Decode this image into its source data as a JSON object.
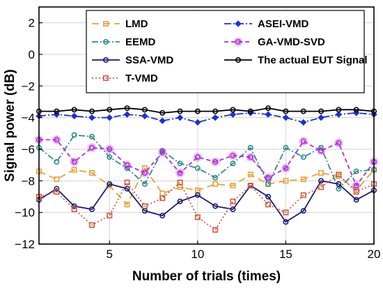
{
  "chart_data": {
    "type": "line",
    "title": "",
    "xlabel": "Number of trials (times)",
    "ylabel": "Signal power (dB)",
    "xlim": [
      1,
      20
    ],
    "ylim": [
      -12,
      3
    ],
    "xticks": [
      5,
      10,
      15,
      20
    ],
    "yticks": [
      2,
      0,
      -2,
      -4,
      -6,
      -8,
      -10,
      -12
    ],
    "ytick_labels": [
      "2",
      "0",
      "−2",
      "−4",
      "−6",
      "−8",
      "−10",
      "−12"
    ],
    "grid": true,
    "legend_position": "top",
    "x": [
      1,
      2,
      3,
      4,
      5,
      6,
      7,
      8,
      9,
      10,
      11,
      12,
      13,
      14,
      15,
      16,
      17,
      18,
      19,
      20
    ],
    "series": [
      {
        "name": "LMD",
        "color": "#E8A33A",
        "dash": "10,6",
        "marker": "square",
        "values": [
          -7.4,
          -7.9,
          -7.3,
          -7.5,
          -8.3,
          -9.5,
          -7.2,
          -8.8,
          -8.4,
          -8.6,
          -8.2,
          -8.3,
          -7.6,
          -8.2,
          -8.0,
          -7.9,
          -7.5,
          -7.7,
          -8.6,
          -7.3
        ]
      },
      {
        "name": "EEMD",
        "color": "#2E8B8B",
        "dash": "9,3,2,3",
        "marker": "circle",
        "values": [
          -5.9,
          -6.8,
          -5.1,
          -5.2,
          -6.5,
          -7.2,
          -8.2,
          -6.1,
          -6.9,
          -7.2,
          -7.8,
          -6.9,
          -5.9,
          -8.2,
          -5.9,
          -6.5,
          -5.9,
          -8.5,
          -7.4,
          -7.3
        ]
      },
      {
        "name": "SSA-VMD",
        "color": "#1A1A6E",
        "dash": "",
        "marker": "circle",
        "values": [
          -9.2,
          -8.5,
          -9.6,
          -9.8,
          -8.2,
          -8.5,
          -9.9,
          -10.2,
          -9.3,
          -8.9,
          -9.6,
          -9.8,
          -8.3,
          -9.0,
          -10.6,
          -9.9,
          -8.0,
          -8.2,
          -9.2,
          -8.6
        ]
      },
      {
        "name": "T-VMD",
        "color": "#D05A3C",
        "dash": "2,3",
        "marker": "square",
        "values": [
          -9.0,
          -8.7,
          -9.8,
          -10.8,
          -10.2,
          -8.1,
          -9.6,
          -9.1,
          -8.1,
          -10.3,
          -11.1,
          -9.3,
          -8.3,
          -9.5,
          -10.0,
          -8.9,
          -8.4,
          -7.6,
          -8.7,
          -8.2
        ]
      },
      {
        "name": "ASEI-VMD",
        "color": "#1E2FD8",
        "dash": "10,3,2,3",
        "marker": "diamond",
        "values": [
          -3.9,
          -3.8,
          -3.9,
          -4.0,
          -4.0,
          -3.8,
          -3.9,
          -4.2,
          -4.0,
          -4.3,
          -4.0,
          -3.8,
          -3.7,
          -3.8,
          -4.0,
          -4.3,
          -4.0,
          -3.8,
          -3.7,
          -3.8
        ]
      },
      {
        "name": "GA-VMD-SVD",
        "color": "#B12BD6",
        "dash": "6,4",
        "marker": "circle-halo",
        "values": [
          -5.4,
          -5.4,
          -6.8,
          -5.9,
          -6.0,
          -7.0,
          -7.5,
          -6.2,
          -7.5,
          -6.5,
          -6.8,
          -6.4,
          -6.5,
          -7.8,
          -7.2,
          -5.5,
          -6.1,
          -5.6,
          -8.3,
          -6.8
        ]
      },
      {
        "name": "The actual EUT Signal",
        "color": "#000000",
        "dash": "",
        "marker": "circle",
        "values": [
          -3.6,
          -3.6,
          -3.5,
          -3.6,
          -3.5,
          -3.4,
          -3.5,
          -3.7,
          -3.6,
          -3.6,
          -3.6,
          -3.5,
          -3.6,
          -3.4,
          -3.6,
          -3.6,
          -3.6,
          -3.5,
          -3.5,
          -3.6
        ]
      }
    ],
    "legend_order": [
      "LMD",
      "ASEI-VMD",
      "EEMD",
      "GA-VMD-SVD",
      "SSA-VMD",
      "The actual EUT Signal",
      "T-VMD"
    ]
  }
}
